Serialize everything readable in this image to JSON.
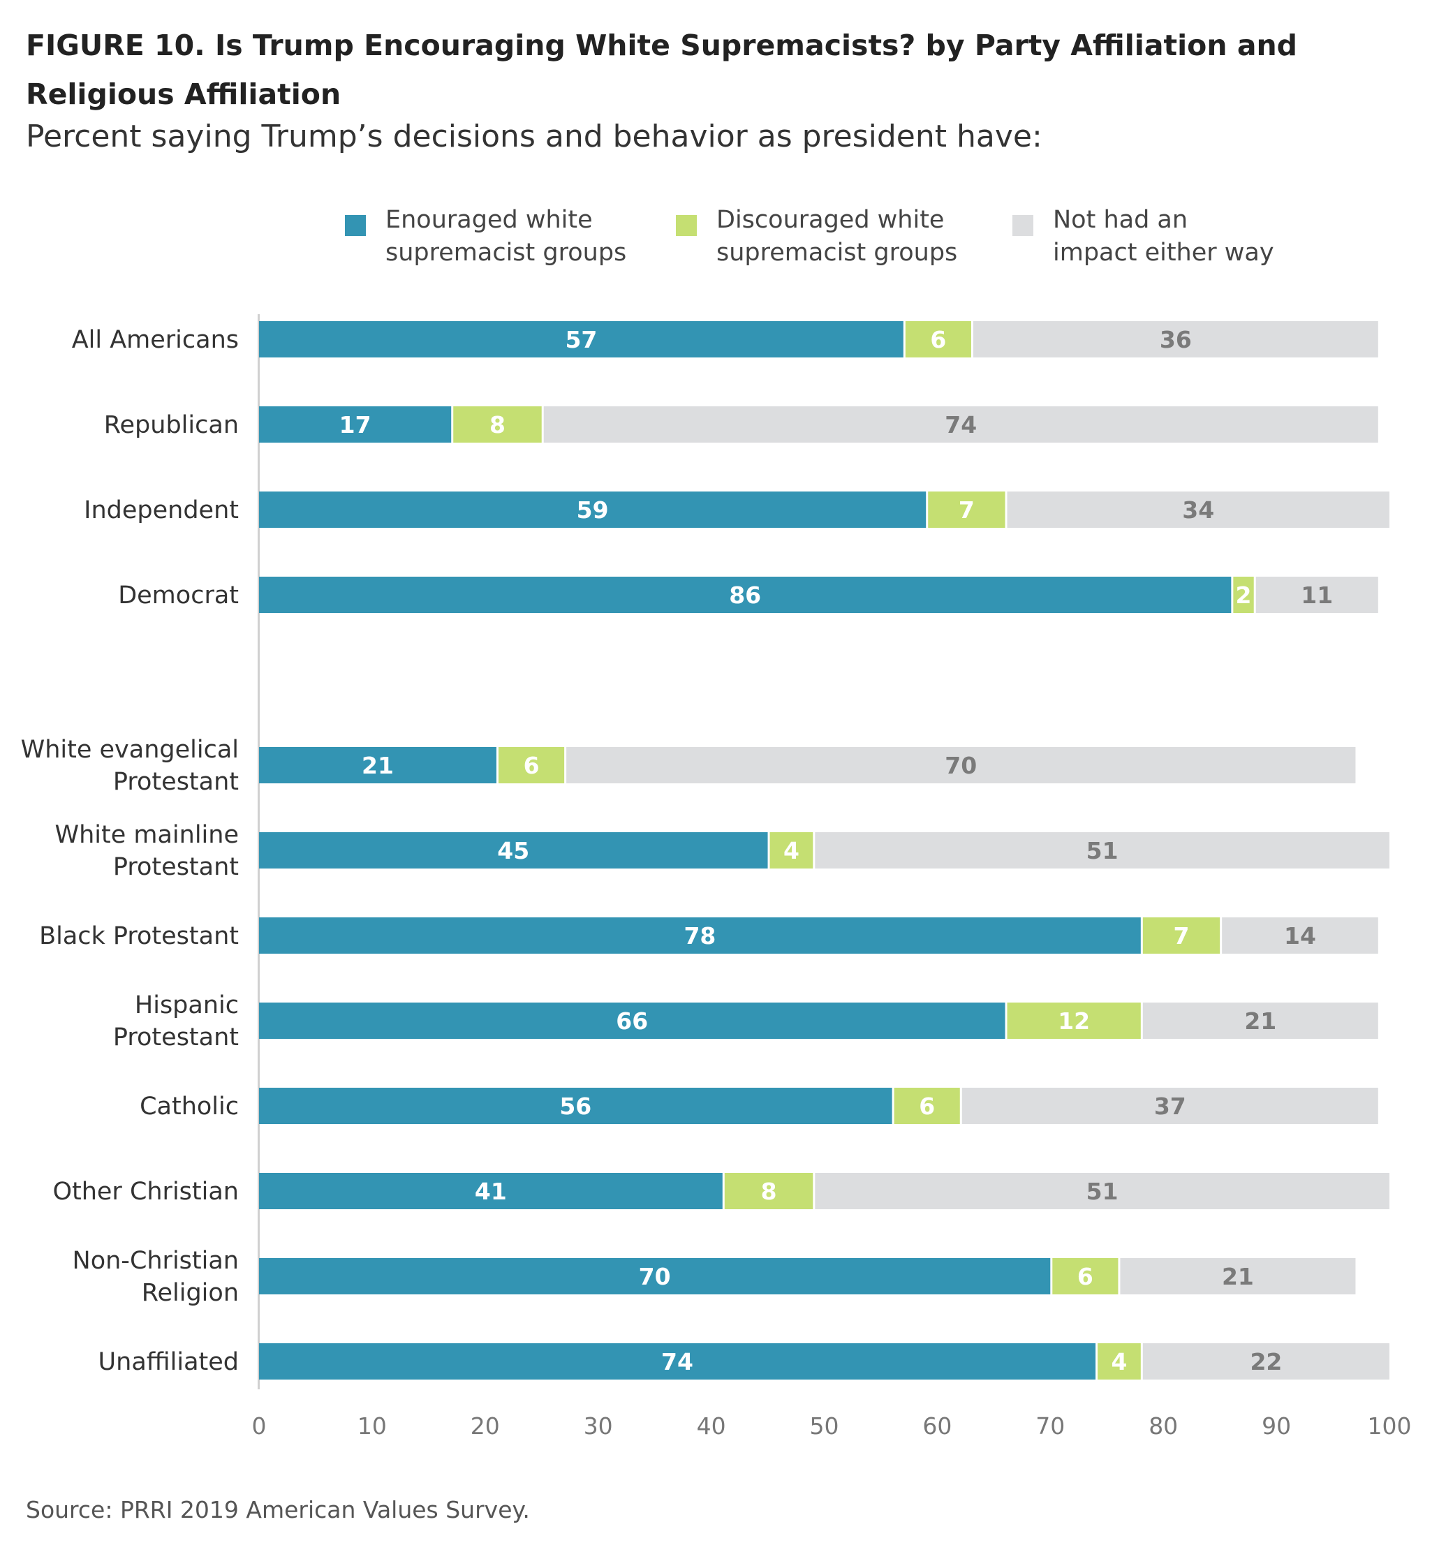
{
  "chart_data": {
    "type": "bar",
    "orientation": "horizontal",
    "stacked": true,
    "title": "FIGURE 10. Is Trump Encouraging White Supremacists? by Party Affiliation and Religious Affiliation",
    "subtitle": "Percent saying Trump’s decisions and behavior as president have:",
    "source": "Source: PRRI 2019 American Values Survey.",
    "legend_position": "top",
    "grid": false,
    "xlim": [
      0,
      100
    ],
    "ticks": [
      "0",
      "10",
      "20",
      "30",
      "40",
      "50",
      "60",
      "70",
      "80",
      "90",
      "100"
    ],
    "categories": [
      "All Americans",
      "Republican",
      "Independent",
      "Democrat",
      "White evangelical Protestant",
      "White mainline Protestant",
      "Black Protestant",
      "Hispanic Protestant",
      "Catholic",
      "Other Christian",
      "Non-Christian Religion",
      "Unaffiliated"
    ],
    "category_lines": [
      [
        "All Americans"
      ],
      [
        "Republican"
      ],
      [
        "Independent"
      ],
      [
        "Democrat"
      ],
      [
        "White evangelical",
        "Protestant"
      ],
      [
        "White mainline",
        "Protestant"
      ],
      [
        "Black Protestant"
      ],
      [
        "Hispanic",
        "Protestant"
      ],
      [
        "Catholic"
      ],
      [
        "Other Christian"
      ],
      [
        "Non-Christian",
        "Religion"
      ],
      [
        "Unaffiliated"
      ]
    ],
    "groups": [
      {
        "start": 0,
        "count": 4
      },
      {
        "start": 4,
        "count": 8
      }
    ],
    "series": [
      {
        "name": "Enouraged white supremacist groups",
        "legend_lines": [
          "Enouraged white",
          "supremacist groups"
        ],
        "color": "#3394b3",
        "label_color": "#ffffff",
        "values": [
          57,
          17,
          59,
          86,
          21,
          45,
          78,
          66,
          56,
          41,
          70,
          74
        ]
      },
      {
        "name": "Discouraged white supremacist groups",
        "legend_lines": [
          "Discouraged white",
          "supremacist groups"
        ],
        "color": "#c5df72",
        "label_color": "#ffffff",
        "values": [
          6,
          8,
          7,
          2,
          6,
          4,
          7,
          12,
          6,
          8,
          6,
          4
        ]
      },
      {
        "name": "Not had an impact either way",
        "legend_lines": [
          "Not had an",
          "impact either way"
        ],
        "color": "#dcdddf",
        "label_color": "#7a7a7a",
        "values": [
          36,
          74,
          34,
          11,
          70,
          51,
          14,
          21,
          37,
          51,
          21,
          22
        ]
      }
    ]
  }
}
